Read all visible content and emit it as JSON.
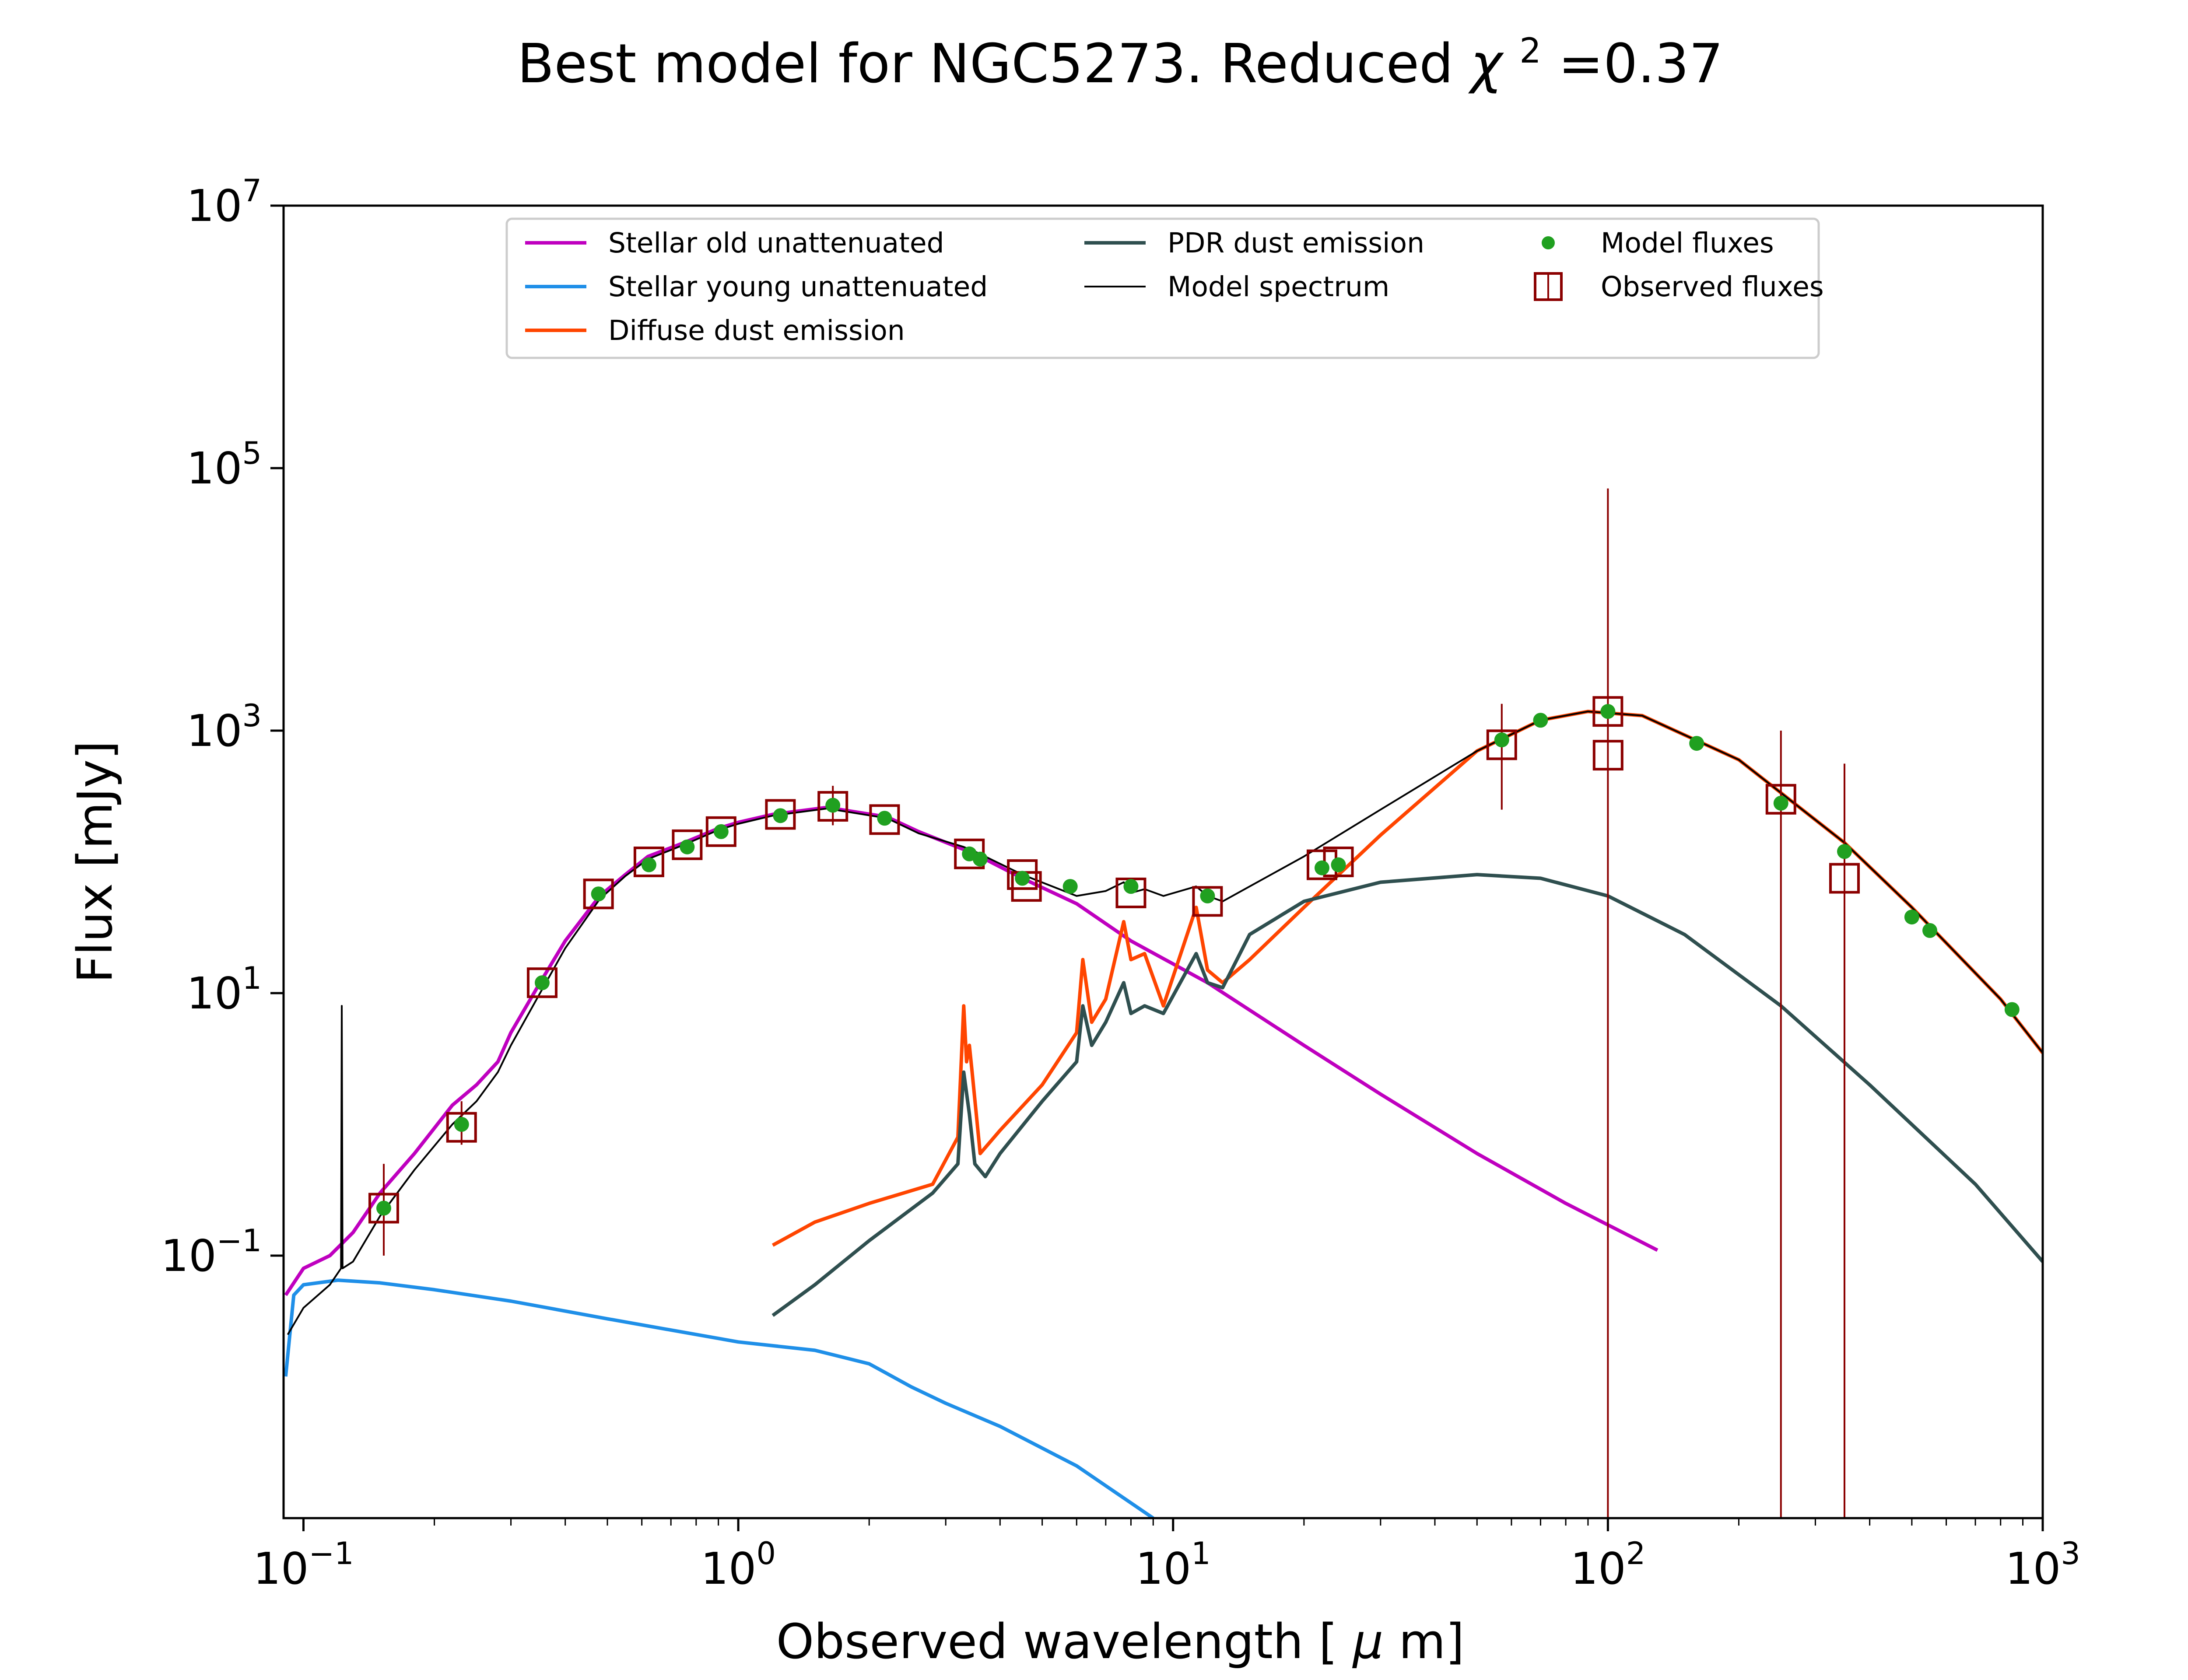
{
  "chart_data": {
    "type": "line",
    "title_prefix": "Best model for NGC5273. Reduced ",
    "title_chi": "χ",
    "title_chi_exp": "2",
    "title_suffix": "=0.37",
    "xlabel_prefix": "Observed wavelength [",
    "xlabel_mu": "μ",
    "xlabel_suffix": "m]",
    "ylabel": "Flux [mJy]",
    "xscale": "log",
    "yscale": "log",
    "xlim": [
      0.09,
      1000
    ],
    "ylim": [
      0.001,
      10000000
    ],
    "grid": false,
    "legend_position": "top-center",
    "x_ticks": [
      {
        "base": "10",
        "exp": "−1",
        "value": 0.1
      },
      {
        "base": "10",
        "exp": "0",
        "value": 1
      },
      {
        "base": "10",
        "exp": "1",
        "value": 10
      },
      {
        "base": "10",
        "exp": "2",
        "value": 100
      },
      {
        "base": "10",
        "exp": "3",
        "value": 1000
      }
    ],
    "y_ticks": [
      {
        "base": "10",
        "exp": "−1",
        "value": 0.1
      },
      {
        "base": "10",
        "exp": "1",
        "value": 10
      },
      {
        "base": "10",
        "exp": "3",
        "value": 1000
      },
      {
        "base": "10",
        "exp": "5",
        "value": 100000
      },
      {
        "base": "10",
        "exp": "7",
        "value": 10000000
      }
    ],
    "series": [
      {
        "name": "Stellar old unattenuated",
        "color": "#bf00bf",
        "style": "line",
        "x": [
          0.091,
          0.1,
          0.115,
          0.13,
          0.15,
          0.18,
          0.22,
          0.25,
          0.28,
          0.3,
          0.35,
          0.4,
          0.48,
          0.55,
          0.62,
          0.75,
          0.9,
          1.0,
          1.2,
          1.6,
          2.2,
          2.6,
          3.5,
          4.5,
          6.0,
          8.0,
          12.0,
          20.0,
          30.0,
          50.0,
          80.0,
          130.0
        ],
        "y": [
          0.05,
          0.08,
          0.1,
          0.15,
          0.3,
          0.6,
          1.4,
          2.0,
          3.0,
          5.0,
          12.0,
          25.0,
          55.0,
          80.0,
          110.0,
          140.0,
          180.0,
          200.0,
          230.0,
          260.0,
          220.0,
          170.0,
          115.0,
          75.0,
          48.0,
          25.0,
          12.0,
          4.0,
          1.7,
          0.6,
          0.25,
          0.11
        ]
      },
      {
        "name": "Stellar young unattenuated",
        "color": "#1f8fe8",
        "style": "line",
        "x": [
          0.091,
          0.095,
          0.1,
          0.12,
          0.15,
          0.2,
          0.3,
          0.5,
          1.0,
          1.5,
          2.0,
          2.5,
          3.0,
          4.0,
          6.0,
          9.0
        ],
        "y": [
          0.012,
          0.05,
          0.06,
          0.065,
          0.062,
          0.055,
          0.045,
          0.033,
          0.022,
          0.019,
          0.015,
          0.01,
          0.0075,
          0.005,
          0.0025,
          0.001
        ]
      },
      {
        "name": "Diffuse dust emission",
        "color": "#ff4500",
        "style": "line",
        "x": [
          1.2,
          1.5,
          2.0,
          2.8,
          3.2,
          3.3,
          3.35,
          3.4,
          3.45,
          3.6,
          4.0,
          5.0,
          6.0,
          6.2,
          6.5,
          7.0,
          7.7,
          8.0,
          8.6,
          9.5,
          11.3,
          12.0,
          13.0,
          15.0,
          20.0,
          30.0,
          50.0,
          70.0,
          90.0,
          120.0,
          200.0,
          350.0,
          500.0,
          800.0,
          1000.0
        ],
        "y": [
          0.12,
          0.18,
          0.25,
          0.35,
          0.8,
          8.0,
          3.0,
          4.0,
          2.5,
          0.6,
          0.9,
          2.0,
          5.0,
          18.0,
          6.0,
          9.0,
          35.0,
          18.0,
          20.0,
          8.0,
          45.0,
          15.0,
          12.0,
          18.0,
          45.0,
          160.0,
          700.0,
          1200.0,
          1400.0,
          1300.0,
          600.0,
          140.0,
          45.0,
          9.0,
          3.5
        ]
      },
      {
        "name": "PDR dust emission",
        "color": "#2f4f4f",
        "style": "line",
        "x": [
          1.2,
          1.5,
          2.0,
          2.8,
          3.2,
          3.3,
          3.4,
          3.5,
          3.7,
          4.0,
          5.0,
          6.0,
          6.2,
          6.5,
          7.0,
          7.7,
          8.0,
          8.6,
          9.5,
          11.3,
          12.0,
          13.0,
          15.0,
          20.0,
          30.0,
          50.0,
          70.0,
          100.0,
          150.0,
          250.0,
          400.0,
          700.0,
          1000.0
        ],
        "y": [
          0.035,
          0.06,
          0.13,
          0.3,
          0.5,
          2.5,
          1.2,
          0.5,
          0.4,
          0.6,
          1.5,
          3.0,
          8.0,
          4.0,
          6.0,
          12.0,
          7.0,
          8.0,
          7.0,
          20.0,
          12.0,
          11.0,
          28.0,
          50.0,
          70.0,
          80.0,
          75.0,
          55.0,
          28.0,
          8.0,
          2.0,
          0.35,
          0.09
        ]
      },
      {
        "name": "Model spectrum",
        "color": "#000000",
        "style": "line",
        "x": [
          0.092,
          0.1,
          0.115,
          0.122,
          0.1225,
          0.123,
          0.13,
          0.15,
          0.18,
          0.22,
          0.25,
          0.28,
          0.3,
          0.35,
          0.4,
          0.48,
          0.55,
          0.62,
          0.75,
          0.9,
          1.0,
          1.2,
          1.6,
          2.2,
          2.6,
          3.3,
          3.5,
          4.5,
          6.0,
          7.0,
          7.7,
          8.0,
          8.6,
          9.5,
          11.3,
          12.0,
          13.0,
          15.0,
          20.0,
          30.0,
          50.0,
          70.0,
          90.0,
          120.0,
          200.0,
          350.0,
          500.0,
          800.0,
          1000.0
        ],
        "y": [
          0.025,
          0.04,
          0.06,
          0.08,
          8.0,
          0.08,
          0.09,
          0.2,
          0.45,
          1.0,
          1.5,
          2.5,
          4.0,
          10.0,
          22.0,
          52.0,
          78.0,
          105.0,
          135.0,
          175.0,
          195.0,
          225.0,
          255.0,
          215.0,
          165.0,
          130.0,
          120.0,
          80.0,
          55.0,
          60.0,
          70.0,
          58.0,
          62.0,
          55.0,
          65.0,
          55.0,
          50.0,
          65.0,
          110.0,
          250.0,
          700.0,
          1200.0,
          1400.0,
          1300.0,
          600.0,
          140.0,
          45.0,
          9.0,
          3.5
        ]
      },
      {
        "name": "Model fluxes",
        "color": "#20a020",
        "style": "points",
        "x": [
          0.153,
          0.231,
          0.354,
          0.477,
          0.623,
          0.763,
          0.913,
          1.25,
          1.65,
          2.17,
          3.4,
          3.6,
          4.5,
          5.8,
          8.0,
          12.0,
          22.0,
          24.0,
          57.0,
          70.0,
          100.0,
          160.0,
          250.0,
          350.0,
          500.0,
          550.0,
          850.0
        ],
        "y": [
          0.23,
          1.0,
          12.0,
          57.0,
          95.0,
          130.0,
          170.0,
          225.0,
          270.0,
          215.0,
          115.0,
          105.0,
          75.0,
          65.0,
          65.0,
          55.0,
          90.0,
          95.0,
          850.0,
          1200.0,
          1400.0,
          800.0,
          280.0,
          120.0,
          38.0,
          30.0,
          7.5
        ]
      },
      {
        "name": "Observed fluxes",
        "color": "#8b0000",
        "style": "squares",
        "x": [
          0.153,
          0.231,
          0.354,
          0.477,
          0.623,
          0.763,
          0.913,
          1.25,
          1.65,
          2.17,
          3.4,
          4.5,
          4.6,
          8.0,
          12.0,
          22.0,
          24.0,
          57.0,
          100.0,
          100.1,
          250.0,
          350.0
        ],
        "y": [
          0.23,
          0.95,
          12.0,
          57.0,
          100.0,
          135.0,
          170.0,
          230.0,
          265.0,
          210.0,
          115.0,
          80.0,
          65.0,
          58.0,
          50.0,
          95.0,
          100.0,
          780.0,
          1400.0,
          650.0,
          300.0,
          75.0
        ],
        "error_bars": [
          {
            "x": 0.153,
            "low": 0.1,
            "high": 0.5
          },
          {
            "x": 0.231,
            "low": 0.7,
            "high": 1.5
          },
          {
            "x": 1.65,
            "low": 190.0,
            "high": 380.0
          },
          {
            "x": 57.0,
            "low": 250.0,
            "high": 1600.0
          },
          {
            "x": 100.0,
            "low": 0.001,
            "high": 70000.0
          },
          {
            "x": 250.0,
            "low": 0.001,
            "high": 1000.0
          },
          {
            "x": 350.0,
            "low": 0.001,
            "high": 560.0
          }
        ]
      }
    ]
  }
}
